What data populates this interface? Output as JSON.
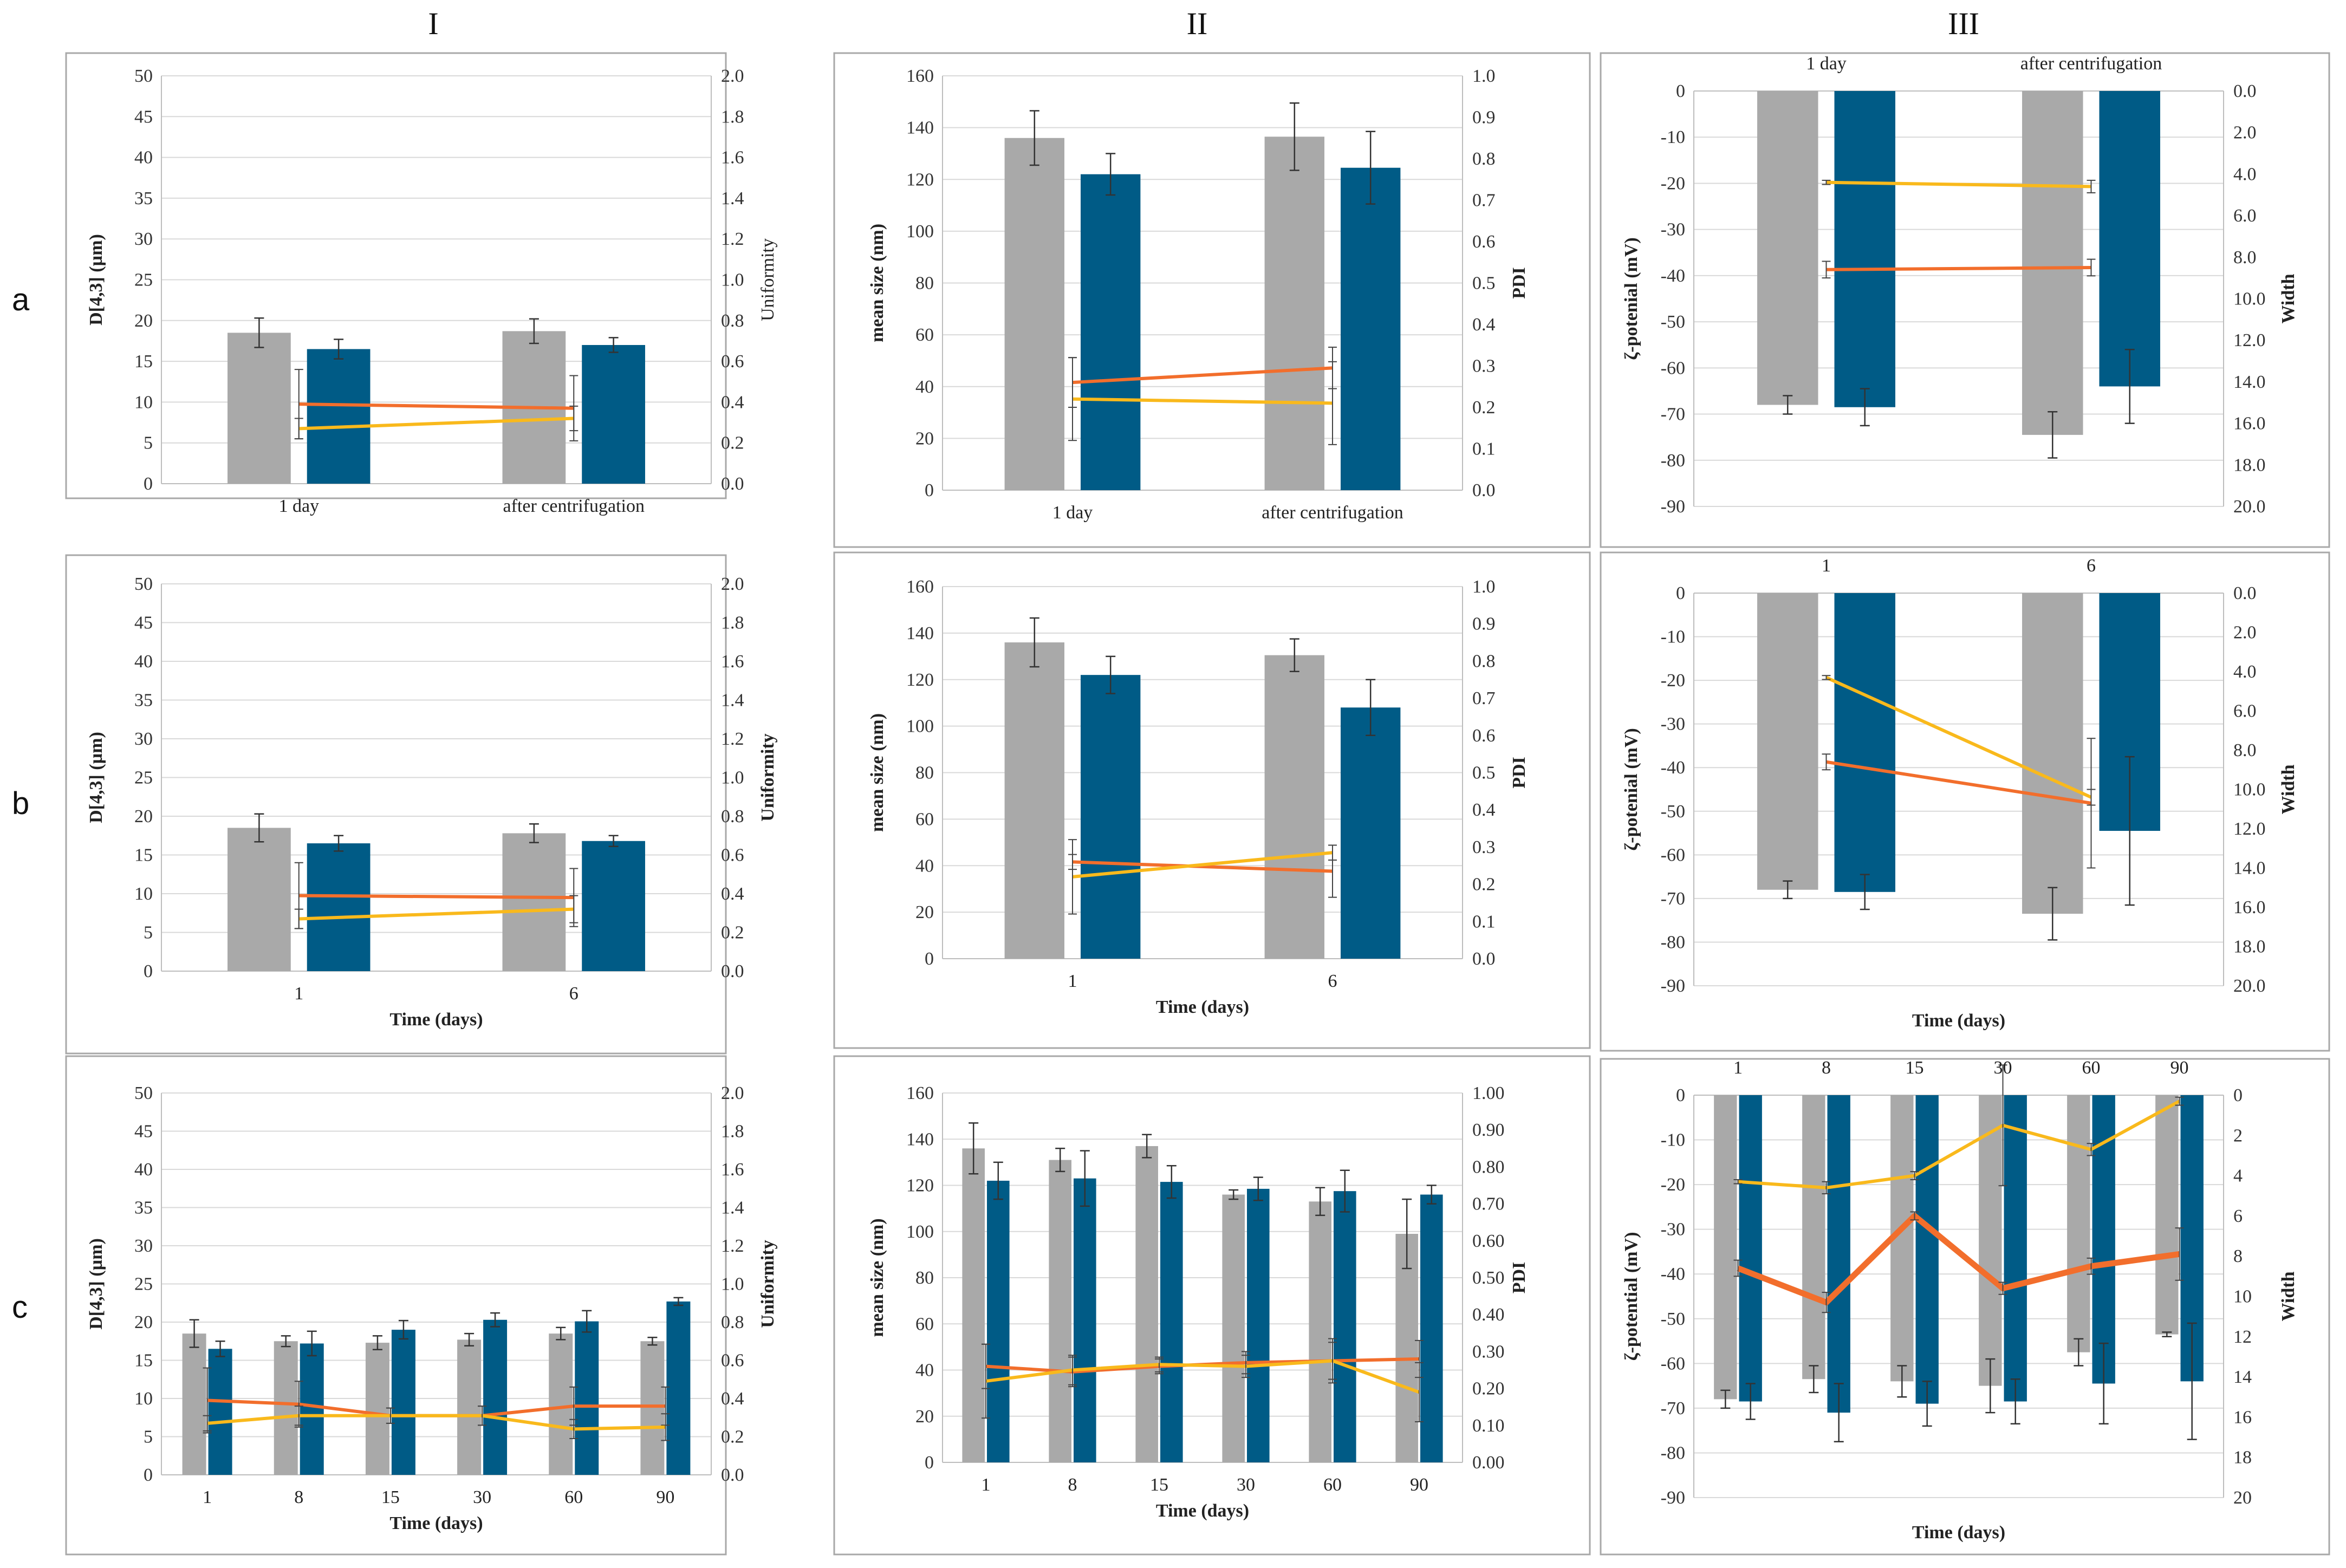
{
  "column_headers": [
    "I",
    "II",
    "III"
  ],
  "row_headers": [
    "a",
    "b",
    "c"
  ],
  "colors": {
    "gray_bar": "#a9a9a9",
    "blue_bar": "#005b86",
    "orange_line": "#f26e2c",
    "yellow_line": "#f9b91c",
    "grid": "#d9d9d9",
    "frame": "#a8a8a8"
  },
  "chart_data": [
    {
      "id": "a-I",
      "type": "bar",
      "categories": [
        "1 day",
        "after centrifugation"
      ],
      "xlabel": "",
      "ylabel": "D[4,3] (µm)",
      "y2label": "Uniformity",
      "ylabel_bold": true,
      "y2label_bold": false,
      "ylim": [
        0,
        50
      ],
      "yticks": [
        0,
        5,
        10,
        15,
        20,
        25,
        30,
        35,
        40,
        45,
        50
      ],
      "y2lim": [
        0,
        2.0
      ],
      "y2ticks": [
        "0.0",
        "0.2",
        "0.4",
        "0.6",
        "0.8",
        "1.0",
        "1.2",
        "1.4",
        "1.6",
        "1.8",
        "2.0"
      ],
      "bars": [
        {
          "values": [
            18.5,
            18.7
          ],
          "errors": [
            1.8,
            1.5
          ],
          "color": "gray"
        },
        {
          "values": [
            16.5,
            17.0
          ],
          "errors": [
            1.2,
            0.9
          ],
          "color": "blue"
        }
      ],
      "lines": [
        {
          "values": [
            0.39,
            0.37
          ],
          "errors": [
            0.17,
            0.16
          ],
          "color": "orange"
        },
        {
          "values": [
            0.27,
            0.32
          ],
          "errors": [
            0.05,
            0.06
          ],
          "color": "yellow"
        }
      ]
    },
    {
      "id": "a-II",
      "type": "bar",
      "categories": [
        "1 day",
        "after centrifugation"
      ],
      "xlabel": "",
      "ylabel": "mean size (nm)",
      "y2label": "PDI",
      "ylabel_bold": true,
      "y2label_bold": true,
      "ylim": [
        0,
        160
      ],
      "yticks": [
        0,
        20,
        40,
        60,
        80,
        100,
        120,
        140,
        160
      ],
      "y2lim": [
        0,
        1.0
      ],
      "y2ticks": [
        "0.0",
        "0.1",
        "0.2",
        "0.3",
        "0.4",
        "0.5",
        "0.6",
        "0.7",
        "0.8",
        "0.9",
        "1.0"
      ],
      "bars": [
        {
          "values": [
            136,
            136.5
          ],
          "errors": [
            10.5,
            13
          ],
          "color": "gray"
        },
        {
          "values": [
            122,
            124.5
          ],
          "errors": [
            8,
            14
          ],
          "color": "blue"
        }
      ],
      "lines": [
        {
          "values": [
            0.26,
            0.295
          ],
          "errors": [
            0.06,
            0.05
          ],
          "color": "orange"
        },
        {
          "values": [
            0.22,
            0.21
          ],
          "errors": [
            0.1,
            0.1
          ],
          "color": "yellow"
        }
      ]
    },
    {
      "id": "a-III",
      "type": "bar",
      "categories": [
        "1 day",
        "after centrifugation"
      ],
      "cat_top": true,
      "xlabel": "",
      "ylabel": "ζ-potenial (mV)",
      "y2label": "Width",
      "ylabel_bold": true,
      "y2label_bold": true,
      "ylim": [
        -90,
        0
      ],
      "yticks": [
        0,
        -10,
        -20,
        -30,
        -40,
        -50,
        -60,
        -70,
        -80,
        -90
      ],
      "y2lim": [
        0,
        20
      ],
      "y2_inverted": true,
      "y2ticks": [
        "0.0",
        "2.0",
        "4.0",
        "6.0",
        "8.0",
        "10.0",
        "12.0",
        "14.0",
        "16.0",
        "18.0",
        "20.0"
      ],
      "bars": [
        {
          "values": [
            -68,
            -74.5
          ],
          "errors": [
            2,
            5
          ],
          "color": "gray"
        },
        {
          "values": [
            -68.5,
            -64
          ],
          "errors": [
            4,
            8
          ],
          "color": "blue"
        }
      ],
      "lines": [
        {
          "values": [
            8.6,
            8.5
          ],
          "errors": [
            0.4,
            0.4
          ],
          "color": "orange"
        },
        {
          "values": [
            4.4,
            4.6
          ],
          "errors": [
            0.1,
            0.3
          ],
          "color": "yellow"
        }
      ]
    },
    {
      "id": "b-I",
      "type": "bar",
      "categories": [
        "1",
        "6"
      ],
      "xlabel": "Time (days)",
      "ylabel": "D[4,3] (µm)",
      "y2label": "Uniformity",
      "ylabel_bold": true,
      "y2label_bold": true,
      "ylim": [
        0,
        50
      ],
      "yticks": [
        0,
        5,
        10,
        15,
        20,
        25,
        30,
        35,
        40,
        45,
        50
      ],
      "y2lim": [
        0,
        2.0
      ],
      "y2ticks": [
        "0.0",
        "0.2",
        "0.4",
        "0.6",
        "0.8",
        "1.0",
        "1.2",
        "1.4",
        "1.6",
        "1.8",
        "2.0"
      ],
      "bars": [
        {
          "values": [
            18.5,
            17.8
          ],
          "errors": [
            1.8,
            1.2
          ],
          "color": "gray"
        },
        {
          "values": [
            16.5,
            16.8
          ],
          "errors": [
            1.0,
            0.7
          ],
          "color": "blue"
        }
      ],
      "lines": [
        {
          "values": [
            0.39,
            0.38
          ],
          "errors": [
            0.17,
            0.15
          ],
          "color": "orange"
        },
        {
          "values": [
            0.27,
            0.32
          ],
          "errors": [
            0.05,
            0.07
          ],
          "color": "yellow"
        }
      ]
    },
    {
      "id": "b-II",
      "type": "bar",
      "categories": [
        "1",
        "6"
      ],
      "xlabel": "Time (days)",
      "ylabel": "mean size (nm)",
      "y2label": "PDI",
      "ylabel_bold": true,
      "y2label_bold": true,
      "ylim": [
        0,
        160
      ],
      "yticks": [
        0,
        20,
        40,
        60,
        80,
        100,
        120,
        140,
        160
      ],
      "y2lim": [
        0,
        1.0
      ],
      "y2ticks": [
        "0.0",
        "0.1",
        "0.2",
        "0.3",
        "0.4",
        "0.5",
        "0.6",
        "0.7",
        "0.8",
        "0.9",
        "1.0"
      ],
      "bars": [
        {
          "values": [
            136,
            130.5
          ],
          "errors": [
            10.5,
            7
          ],
          "color": "gray"
        },
        {
          "values": [
            122,
            108
          ],
          "errors": [
            8,
            12
          ],
          "color": "blue"
        }
      ],
      "lines": [
        {
          "values": [
            0.26,
            0.235
          ],
          "errors": [
            0.02,
            0.07
          ],
          "color": "orange"
        },
        {
          "values": [
            0.22,
            0.285
          ],
          "errors": [
            0.1,
            0.02
          ],
          "color": "yellow"
        }
      ]
    },
    {
      "id": "b-III",
      "type": "bar",
      "categories": [
        "1",
        "6"
      ],
      "cat_top": true,
      "xlabel": "Time (days)",
      "ylabel": "ζ-potenial (mV)",
      "y2label": "Width",
      "ylabel_bold": true,
      "y2label_bold": true,
      "ylim": [
        -90,
        0
      ],
      "yticks": [
        0,
        -10,
        -20,
        -30,
        -40,
        -50,
        -60,
        -70,
        -80,
        -90
      ],
      "y2lim": [
        0,
        20
      ],
      "y2_inverted": true,
      "y2ticks": [
        "0.0",
        "2.0",
        "4.0",
        "6.0",
        "8.0",
        "10.0",
        "12.0",
        "14.0",
        "16.0",
        "18.0",
        "20.0"
      ],
      "bars": [
        {
          "values": [
            -68,
            -73.5
          ],
          "errors": [
            2,
            6
          ],
          "color": "gray"
        },
        {
          "values": [
            -68.5,
            -54.5
          ],
          "errors": [
            4,
            17
          ],
          "color": "blue"
        }
      ],
      "lines": [
        {
          "values": [
            8.6,
            10.7
          ],
          "errors": [
            0.4,
            3.3
          ],
          "color": "orange"
        },
        {
          "values": [
            4.3,
            10.4
          ],
          "errors": [
            0.1,
            0.4
          ],
          "color": "yellow"
        }
      ]
    },
    {
      "id": "c-I",
      "type": "bar",
      "categories": [
        "1",
        "8",
        "15",
        "30",
        "60",
        "90"
      ],
      "xlabel": "Time (days)",
      "ylabel": "D[4,3] (µm)",
      "y2label": "Uniformity",
      "ylabel_bold": true,
      "y2label_bold": true,
      "ylim": [
        0,
        50
      ],
      "yticks": [
        0,
        5,
        10,
        15,
        20,
        25,
        30,
        35,
        40,
        45,
        50
      ],
      "y2lim": [
        0,
        2.0
      ],
      "y2ticks": [
        "0.0",
        "0.2",
        "0.4",
        "0.6",
        "0.8",
        "1.0",
        "1.2",
        "1.4",
        "1.6",
        "1.8",
        "2.0"
      ],
      "bars": [
        {
          "values": [
            18.5,
            17.5,
            17.3,
            17.7,
            18.5,
            17.5
          ],
          "errors": [
            1.8,
            0.7,
            0.9,
            0.8,
            0.8,
            0.5
          ],
          "color": "gray"
        },
        {
          "values": [
            16.5,
            17.2,
            19.0,
            20.3,
            20.1,
            22.7
          ],
          "errors": [
            1.0,
            1.6,
            1.2,
            0.9,
            1.4,
            0.5
          ],
          "color": "blue"
        }
      ],
      "lines": [
        {
          "values": [
            0.39,
            0.37,
            0.31,
            0.31,
            0.36,
            0.36
          ],
          "errors": [
            0.17,
            0.12,
            0.04,
            0.05,
            0.1,
            0.1
          ],
          "color": "orange"
        },
        {
          "values": [
            0.27,
            0.31,
            0.31,
            0.31,
            0.24,
            0.25
          ],
          "errors": [
            0.04,
            0.05,
            0.04,
            0.05,
            0.05,
            0.07
          ],
          "color": "yellow"
        }
      ]
    },
    {
      "id": "c-II",
      "type": "bar",
      "categories": [
        "1",
        "8",
        "15",
        "30",
        "60",
        "90"
      ],
      "xlabel": "Time (days)",
      "ylabel": "mean size (nm)",
      "y2label": "PDI",
      "ylabel_bold": true,
      "y2label_bold": true,
      "ylim": [
        0,
        160
      ],
      "yticks": [
        0,
        20,
        40,
        60,
        80,
        100,
        120,
        140,
        160
      ],
      "y2lim": [
        0,
        1.0
      ],
      "y2ticks": [
        "0.00",
        "0.10",
        "0.20",
        "0.30",
        "0.40",
        "0.50",
        "0.60",
        "0.70",
        "0.80",
        "0.90",
        "1.00"
      ],
      "bars": [
        {
          "values": [
            136,
            131,
            137,
            116,
            113,
            99
          ],
          "errors": [
            11,
            5,
            5,
            2,
            6,
            15
          ],
          "color": "gray"
        },
        {
          "values": [
            122,
            123,
            121.5,
            118.5,
            117.5,
            116
          ],
          "errors": [
            8,
            12,
            7,
            5,
            9,
            4
          ],
          "color": "blue"
        }
      ],
      "lines": [
        {
          "values": [
            0.26,
            0.245,
            0.26,
            0.27,
            0.275,
            0.28
          ],
          "errors": [
            0.06,
            0.04,
            0.02,
            0.03,
            0.06,
            0.05
          ],
          "color": "orange"
        },
        {
          "values": [
            0.22,
            0.25,
            0.265,
            0.26,
            0.275,
            0.19
          ],
          "errors": [
            0.1,
            0.04,
            0.02,
            0.03,
            0.05,
            0.08
          ],
          "color": "yellow"
        }
      ]
    },
    {
      "id": "c-III",
      "type": "bar",
      "categories": [
        "1",
        "8",
        "15",
        "30",
        "60",
        "90"
      ],
      "cat_top": true,
      "xlabel": "Time (days)",
      "ylabel": "ζ-potential (mV)",
      "y2label": "Width",
      "ylabel_bold": true,
      "y2label_bold": true,
      "ylim": [
        -90,
        0
      ],
      "yticks": [
        0,
        -10,
        -20,
        -30,
        -40,
        -50,
        -60,
        -70,
        -80,
        -90
      ],
      "y2lim": [
        0,
        20
      ],
      "y2_inverted": true,
      "y2ticks": [
        "0",
        "2",
        "4",
        "6",
        "8",
        "10",
        "12",
        "14",
        "16",
        "18",
        "20"
      ],
      "bars": [
        {
          "values": [
            -68,
            -63.5,
            -64,
            -65,
            -57.5,
            -53.5
          ],
          "errors": [
            2,
            3,
            3.5,
            6,
            3,
            0.5
          ],
          "color": "gray"
        },
        {
          "values": [
            -68.5,
            -71,
            -69,
            -68.5,
            -64.5,
            -64
          ],
          "errors": [
            4,
            6.5,
            5,
            5,
            9,
            13
          ],
          "color": "blue"
        }
      ],
      "lines": [
        {
          "values": [
            8.6,
            10.3,
            6.0,
            9.6,
            8.5,
            7.9
          ],
          "errors": [
            0.4,
            0.5,
            0.2,
            0.3,
            0.4,
            1.3
          ],
          "color": "orange",
          "bold": true
        },
        {
          "values": [
            4.3,
            4.6,
            4.0,
            1.5,
            2.7,
            0.3
          ],
          "errors": [
            0.1,
            0.3,
            0.2,
            3.0,
            0.3,
            0.2
          ],
          "color": "yellow"
        }
      ]
    }
  ]
}
